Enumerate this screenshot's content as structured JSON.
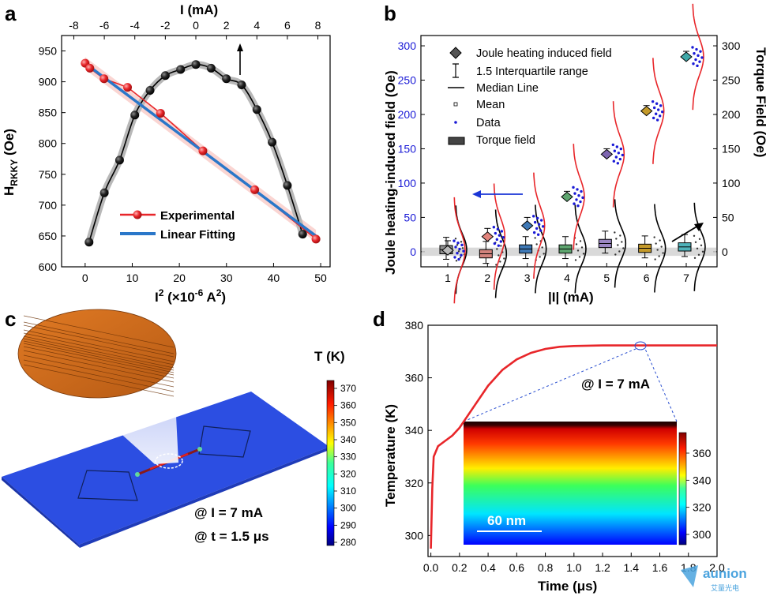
{
  "panels": {
    "a": {
      "label": "a"
    },
    "b": {
      "label": "b"
    },
    "c": {
      "label": "c",
      "colorbar_title": "T (K)",
      "annotation_current": "@ I = 7 mA",
      "annotation_time": "@ t = 1.5 μs",
      "colorbar_ticks": [
        "370",
        "360",
        "350",
        "340",
        "330",
        "320",
        "310",
        "300",
        "290",
        "280"
      ]
    },
    "d": {
      "label": "d",
      "annotation": "@ I = 7 mA",
      "scale_bar": "60 nm",
      "inset_colorbar_ticks": [
        "360",
        "340",
        "320",
        "300"
      ]
    }
  },
  "watermark": {
    "brand": "aunion",
    "sub": "艾量光电"
  },
  "chart_data": [
    {
      "panel": "a",
      "type": "line",
      "ylabel": "H_RKKY (Oe)",
      "xlabel": "I² (×10⁻⁶ A²)",
      "x2label": "I (mA)",
      "xlim": [
        -5,
        52
      ],
      "x2lim": [
        -8.8,
        8.8
      ],
      "ylim": [
        600,
        975
      ],
      "xticks": [
        0,
        10,
        20,
        30,
        40,
        50
      ],
      "x2ticks": [
        -8,
        -6,
        -4,
        -2,
        0,
        2,
        4,
        6,
        8
      ],
      "yticks": [
        600,
        650,
        700,
        750,
        800,
        850,
        900,
        950
      ],
      "legend": "lower-left",
      "series": [
        {
          "name": "Experimental",
          "color": "#e8262a",
          "x": [
            0,
            1,
            4,
            9,
            16,
            25,
            36,
            49
          ],
          "y": [
            930,
            922,
            905,
            891,
            849,
            788,
            725,
            645
          ]
        },
        {
          "name": "Linear Fitting",
          "color": "#2a77c9",
          "x": [
            0,
            49
          ],
          "y": [
            930,
            650
          ]
        },
        {
          "axis": "top",
          "color": "#000000",
          "x": [
            -7,
            -6,
            -5,
            -4,
            -3,
            -2,
            -1,
            0,
            1,
            2,
            3,
            4,
            5,
            6,
            7
          ],
          "y": [
            640,
            720,
            773,
            846,
            886,
            910,
            920,
            928,
            922,
            905,
            895,
            855,
            802,
            732,
            653
          ]
        }
      ]
    },
    {
      "panel": "b",
      "type": "box",
      "ylabel": "Joule heating-induced field (Oe)",
      "y2label": "Torque Field (Oe)",
      "xlabel": "|I| (mA)",
      "categories": [
        "1",
        "2",
        "3",
        "4",
        "5",
        "6",
        "7"
      ],
      "ylim": [
        -22,
        315
      ],
      "yticks": [
        0,
        50,
        100,
        150,
        200,
        250,
        300
      ],
      "legend": [
        "Joule heating induced field",
        "1.5 Interquartile range",
        "Median Line",
        "Mean",
        "Data",
        "Torque field"
      ],
      "joule_field_median": [
        2,
        22,
        38,
        80,
        142,
        205,
        284
      ],
      "joule_box_colors": [
        "#b9b9b9",
        "#e2847c",
        "#3f79b6",
        "#5ea56f",
        "#7e66b0",
        "#c49a2a",
        "#3fa8a8"
      ],
      "torque_field_median": [
        3,
        -3,
        4,
        4,
        12,
        5,
        7
      ],
      "torque_box_colors": [
        "#8f8f8f",
        "#d3837d",
        "#3f79b6",
        "#5ea56f",
        "#9b86c4",
        "#c49a2a",
        "#4fb2ba"
      ]
    },
    {
      "panel": "d",
      "type": "line",
      "xlabel": "Time (μs)",
      "ylabel": "Temperature (K)",
      "xlim": [
        -0.02,
        2.0
      ],
      "ylim": [
        292,
        380
      ],
      "xticks": [
        0.0,
        0.2,
        0.4,
        0.6,
        0.8,
        1.0,
        1.2,
        1.4,
        1.6,
        1.8,
        2.0
      ],
      "yticks": [
        300,
        320,
        340,
        360,
        380
      ],
      "series": [
        {
          "color": "#e8262a",
          "x": [
            0.0,
            0.01,
            0.02,
            0.05,
            0.1,
            0.15,
            0.2,
            0.3,
            0.4,
            0.5,
            0.6,
            0.7,
            0.8,
            0.9,
            1.0,
            1.2,
            1.4,
            1.6,
            1.8,
            2.0
          ],
          "y": [
            295,
            318,
            330,
            334,
            336,
            338,
            341,
            349,
            357,
            363,
            367,
            369.5,
            371,
            371.8,
            372.1,
            372.3,
            372.3,
            372.3,
            372.3,
            372.3
          ]
        }
      ]
    }
  ]
}
